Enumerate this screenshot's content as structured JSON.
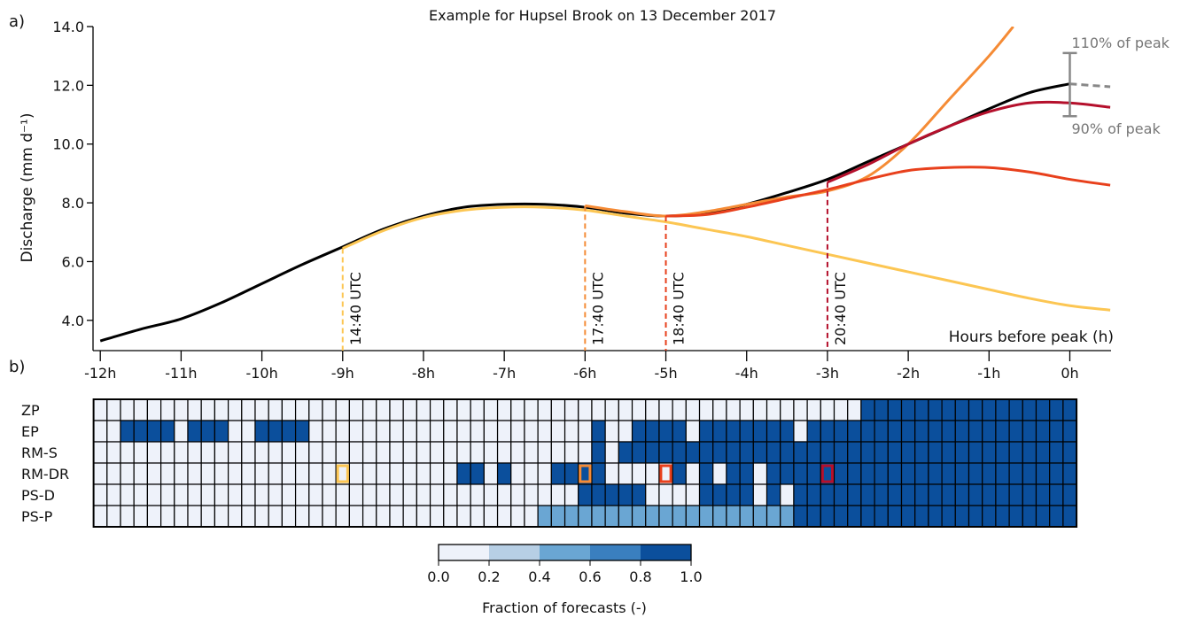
{
  "chart_data": [
    {
      "type": "line",
      "panel_label": "a)",
      "title": "Example for Hupsel Brook on 13 December 2017",
      "xlabel": "Hours before peak (h)",
      "ylabel": "Discharge (mm d⁻¹)",
      "xlim": [
        -12.09,
        0.51
      ],
      "ylim": [
        3.0,
        14.0
      ],
      "xticks": [
        {
          "value": -12,
          "label": "-12h"
        },
        {
          "value": -11,
          "label": "-11h"
        },
        {
          "value": -10,
          "label": "-10h"
        },
        {
          "value": -9,
          "label": "-9h"
        },
        {
          "value": -8,
          "label": "-8h"
        },
        {
          "value": -7,
          "label": "-7h"
        },
        {
          "value": -6,
          "label": "-6h"
        },
        {
          "value": -5,
          "label": "-5h"
        },
        {
          "value": -4,
          "label": "-4h"
        },
        {
          "value": -3,
          "label": "-3h"
        },
        {
          "value": -2,
          "label": "-2h"
        },
        {
          "value": -1,
          "label": "-1h"
        },
        {
          "value": 0,
          "label": "0h"
        }
      ],
      "yticks": [
        {
          "value": 4,
          "label": "4.0"
        },
        {
          "value": 6,
          "label": "6.0"
        },
        {
          "value": 8,
          "label": "8.0"
        },
        {
          "value": 10,
          "label": "10.0"
        },
        {
          "value": 12,
          "label": "12.0"
        },
        {
          "value": 14,
          "label": "14.0"
        }
      ],
      "series": [
        {
          "color": "#000000",
          "x": [
            -12,
            -11.5,
            -11,
            -10.5,
            -10,
            -9.5,
            -9,
            -8.5,
            -8,
            -7.5,
            -7,
            -6.5,
            -6,
            -5.5,
            -5,
            -4.5,
            -4,
            -3.5,
            -3,
            -2.5,
            -2,
            -1.5,
            -1,
            -0.5,
            0
          ],
          "values": [
            3.3,
            3.7,
            4.05,
            4.6,
            5.25,
            5.9,
            6.5,
            7.1,
            7.55,
            7.85,
            7.95,
            7.95,
            7.85,
            7.65,
            7.55,
            7.65,
            7.95,
            8.35,
            8.8,
            9.4,
            10.0,
            10.6,
            11.2,
            11.75,
            12.05
          ]
        },
        {
          "color": "#888888",
          "dash": true,
          "x": [
            0,
            0.5
          ],
          "values": [
            12.05,
            11.95
          ]
        },
        {
          "color": "#fcc653",
          "label": "14:40 UTC",
          "x": [
            -9,
            -8.5,
            -8,
            -7.5,
            -7,
            -6.5,
            -6,
            -5.5,
            -5,
            -4.5,
            -4,
            -3.5,
            -3,
            -2.5,
            -2,
            -1.5,
            -1,
            -0.5,
            0,
            0.5
          ],
          "values": [
            6.45,
            7.05,
            7.5,
            7.75,
            7.85,
            7.85,
            7.75,
            7.55,
            7.35,
            7.1,
            6.85,
            6.55,
            6.25,
            5.95,
            5.65,
            5.35,
            5.05,
            4.75,
            4.5,
            4.35
          ]
        },
        {
          "color": "#f58b35",
          "label": "17:40 UTC",
          "x": [
            -6,
            -5.5,
            -5,
            -4.5,
            -4,
            -3.5,
            -3,
            -2.5,
            -2,
            -1.5,
            -1,
            -0.7
          ],
          "values": [
            7.9,
            7.7,
            7.55,
            7.7,
            7.95,
            8.2,
            8.4,
            8.9,
            10.0,
            11.5,
            13.0,
            14.0
          ]
        },
        {
          "color": "#e8401c",
          "label": "18:40 UTC",
          "x": [
            -5,
            -4.5,
            -4,
            -3.5,
            -3,
            -2.5,
            -2,
            -1.5,
            -1,
            -0.5,
            0,
            0.5
          ],
          "values": [
            7.55,
            7.6,
            7.85,
            8.15,
            8.45,
            8.8,
            9.1,
            9.2,
            9.2,
            9.05,
            8.8,
            8.6
          ]
        },
        {
          "color": "#b5102c",
          "label": "20:40 UTC",
          "x": [
            -3,
            -2.5,
            -2,
            -1.5,
            -1,
            -0.5,
            0,
            0.5
          ],
          "values": [
            8.7,
            9.3,
            10.0,
            10.6,
            11.1,
            11.4,
            11.4,
            11.25
          ]
        }
      ],
      "peak_range": {
        "x": 0,
        "values": [
          10.95,
          13.1
        ],
        "labels": [
          "90% of peak",
          "110% of peak"
        ]
      }
    },
    {
      "type": "heatmap",
      "panel_label": "b)",
      "xlim": [
        -12.0833,
        0.0833
      ],
      "rows": [
        "ZP",
        "EP",
        "RM-S",
        "RM-DR",
        "PS-D",
        "PS-P"
      ],
      "values": [
        [
          0,
          0,
          0,
          0,
          0,
          0,
          0,
          0,
          0,
          0,
          0,
          0,
          0,
          0,
          0,
          0,
          0,
          0,
          0,
          0,
          0,
          0,
          0,
          0,
          0,
          0,
          0,
          0,
          0,
          0,
          0,
          0,
          0,
          0,
          0,
          0,
          0,
          0,
          0,
          0,
          0,
          0,
          0,
          0,
          0,
          0,
          0,
          0,
          0,
          0,
          0,
          0,
          0,
          0,
          0,
          0,
          0,
          1,
          1,
          1,
          1,
          1,
          1,
          1,
          1,
          1,
          1,
          1,
          1,
          1,
          1,
          1,
          1
        ],
        [
          0,
          0,
          1,
          1,
          1,
          1,
          0,
          1,
          1,
          1,
          0,
          0,
          1,
          1,
          1,
          1,
          0,
          0,
          0,
          0,
          0,
          0,
          0,
          0,
          0,
          0,
          0,
          0,
          0,
          0,
          0,
          0,
          0,
          0,
          0,
          0,
          0,
          1,
          0,
          0,
          1,
          1,
          1,
          1,
          0,
          1,
          1,
          1,
          1,
          1,
          1,
          1,
          0,
          1,
          1,
          1,
          1,
          1,
          1,
          1,
          1,
          1,
          1,
          1,
          1,
          1,
          1,
          1,
          1,
          1,
          1,
          1,
          1
        ],
        [
          0,
          0,
          0,
          0,
          0,
          0,
          0,
          0,
          0,
          0,
          0,
          0,
          0,
          0,
          0,
          0,
          0,
          0,
          0,
          0,
          0,
          0,
          0,
          0,
          0,
          0,
          0,
          0,
          0,
          0,
          0,
          0,
          0,
          0,
          0,
          0,
          0,
          1,
          0,
          1,
          1,
          1,
          1,
          1,
          1,
          1,
          1,
          1,
          1,
          1,
          1,
          1,
          1,
          1,
          1,
          1,
          1,
          1,
          1,
          1,
          1,
          1,
          1,
          1,
          1,
          1,
          1,
          1,
          1,
          1,
          1,
          1,
          1
        ],
        [
          0,
          0,
          0,
          0,
          0,
          0,
          0,
          0,
          0,
          0,
          0,
          0,
          0,
          0,
          0,
          0,
          0,
          0,
          0,
          0,
          0,
          0,
          0,
          0,
          0,
          0,
          0,
          1,
          1,
          0,
          1,
          0,
          0,
          0,
          1,
          1,
          1,
          1,
          0,
          0,
          0,
          0,
          0,
          1,
          0,
          1,
          0,
          1,
          1,
          0,
          1,
          1,
          1,
          1,
          1,
          1,
          1,
          1,
          1,
          1,
          1,
          1,
          1,
          1,
          1,
          1,
          1,
          1,
          1,
          1,
          1,
          1,
          1
        ],
        [
          0,
          0,
          0,
          0,
          0,
          0,
          0,
          0,
          0,
          0,
          0,
          0,
          0,
          0,
          0,
          0,
          0,
          0,
          0,
          0,
          0,
          0,
          0,
          0,
          0,
          0,
          0,
          0,
          0,
          0,
          0,
          0,
          0,
          0,
          0,
          0,
          1,
          1,
          1,
          1,
          1,
          0,
          0,
          0,
          0,
          1,
          1,
          1,
          1,
          0,
          1,
          0,
          1,
          1,
          1,
          1,
          1,
          1,
          1,
          1,
          1,
          1,
          1,
          1,
          1,
          1,
          1,
          1,
          1,
          1,
          1,
          1,
          1
        ],
        [
          0,
          0,
          0,
          0,
          0,
          0,
          0,
          0,
          0,
          0,
          0,
          0,
          0,
          0,
          0,
          0,
          0,
          0,
          0,
          0,
          0,
          0,
          0,
          0,
          0,
          0,
          0,
          0,
          0,
          0,
          0,
          0,
          0,
          0.5,
          0.5,
          0.5,
          0.5,
          0.5,
          0.5,
          0.5,
          0.5,
          0.5,
          0.5,
          0.5,
          0.5,
          0.5,
          0.5,
          0.5,
          0.5,
          0.5,
          0.5,
          0.5,
          1,
          1,
          1,
          1,
          1,
          1,
          1,
          1,
          1,
          1,
          1,
          1,
          1,
          1,
          1,
          1,
          1,
          1,
          1,
          1,
          1
        ]
      ],
      "colors": [
        "#eef2fa",
        "#b7cfe5",
        "#6aa6d3",
        "#3a7fbf",
        "#0b4f9c"
      ],
      "clim": [
        0,
        1
      ],
      "colorbar_ticks": [
        {
          "value": 0,
          "label": "0.0"
        },
        {
          "value": 0.2,
          "label": "0.2"
        },
        {
          "value": 0.4,
          "label": "0.4"
        },
        {
          "value": 0.6,
          "label": "0.6"
        },
        {
          "value": 0.8,
          "label": "0.8"
        },
        {
          "value": 1,
          "label": "1.0"
        }
      ],
      "colorbar_label": "Fraction of forecasts (-)"
    }
  ]
}
